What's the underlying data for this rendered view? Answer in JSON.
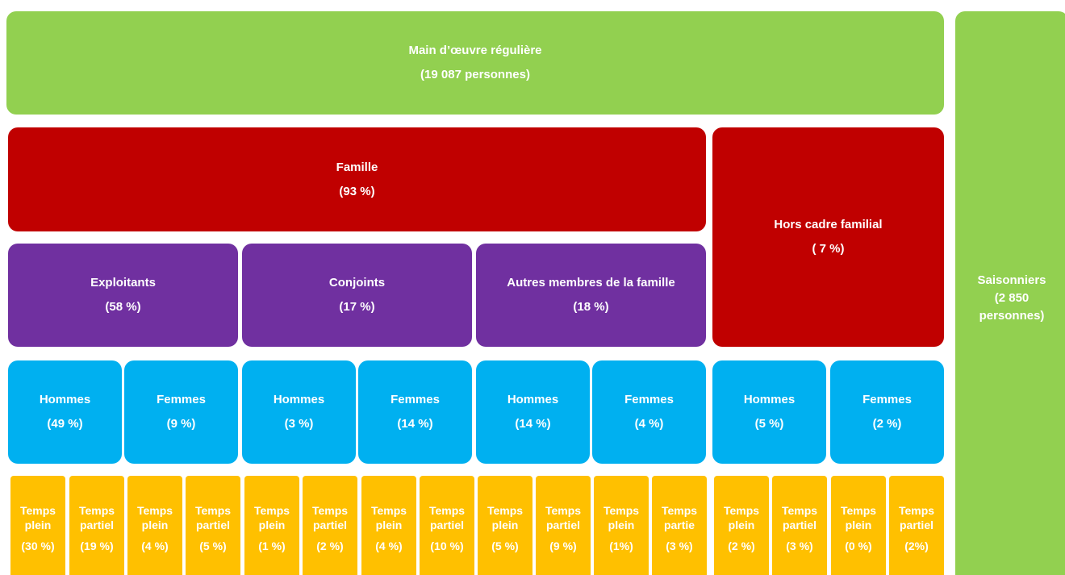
{
  "main": {
    "lines": [
      "Main d’œuvre régulière",
      "(19 087 personnes)"
    ]
  },
  "saisonniers": {
    "lines": [
      "Saisonniers",
      "(2 850",
      "personnes)"
    ]
  },
  "famille": {
    "lines": [
      "Famille",
      "(93 %)"
    ]
  },
  "hors_cadre": {
    "lines": [
      "Hors cadre familial",
      "( 7 %)"
    ]
  },
  "groups": [
    {
      "lines": [
        "Exploitants",
        "(58 %)"
      ]
    },
    {
      "lines": [
        "Conjoints",
        "(17 %)"
      ]
    },
    {
      "lines": [
        "Autres membres de la famille",
        "(18 %)"
      ]
    }
  ],
  "genders": [
    {
      "lines": [
        "Hommes",
        "(49 %)"
      ]
    },
    {
      "lines": [
        "Femmes",
        "(9 %)"
      ]
    },
    {
      "lines": [
        "Hommes",
        "(3 %)"
      ]
    },
    {
      "lines": [
        "Femmes",
        "(14 %)"
      ]
    },
    {
      "lines": [
        "Hommes",
        "(14 %)"
      ]
    },
    {
      "lines": [
        "Femmes",
        "(4 %)"
      ]
    },
    {
      "lines": [
        "Hommes",
        "(5 %)"
      ]
    },
    {
      "lines": [
        "Femmes",
        "(2 %)"
      ]
    }
  ],
  "durations": [
    {
      "lines": [
        "Temps",
        "plein",
        "(30 %)"
      ]
    },
    {
      "lines": [
        "Temps",
        "partiel",
        "(19 %)"
      ]
    },
    {
      "lines": [
        "Temps",
        "plein",
        "(4 %)"
      ]
    },
    {
      "lines": [
        "Temps",
        "partiel",
        "(5 %)"
      ]
    },
    {
      "lines": [
        "Temps",
        "plein",
        "(1 %)"
      ]
    },
    {
      "lines": [
        "Temps",
        "partiel",
        "(2 %)"
      ]
    },
    {
      "lines": [
        "Temps",
        "plein",
        "(4 %)"
      ]
    },
    {
      "lines": [
        "Temps",
        "partiel",
        "(10 %)"
      ]
    },
    {
      "lines": [
        "Temps",
        "plein",
        "(5 %)"
      ]
    },
    {
      "lines": [
        "Temps",
        "partiel",
        "(9 %)"
      ]
    },
    {
      "lines": [
        "Temps",
        "plein",
        "(1%)"
      ]
    },
    {
      "lines": [
        "Temps",
        "partie",
        "(3 %)"
      ]
    },
    {
      "lines": [
        "Temps",
        "plein",
        "(2 %)"
      ]
    },
    {
      "lines": [
        "Temps",
        "partiel",
        "(3 %)"
      ]
    },
    {
      "lines": [
        "Temps",
        "plein",
        "(0 %)"
      ]
    },
    {
      "lines": [
        "Temps",
        "partiel",
        "(2%)"
      ]
    }
  ]
}
